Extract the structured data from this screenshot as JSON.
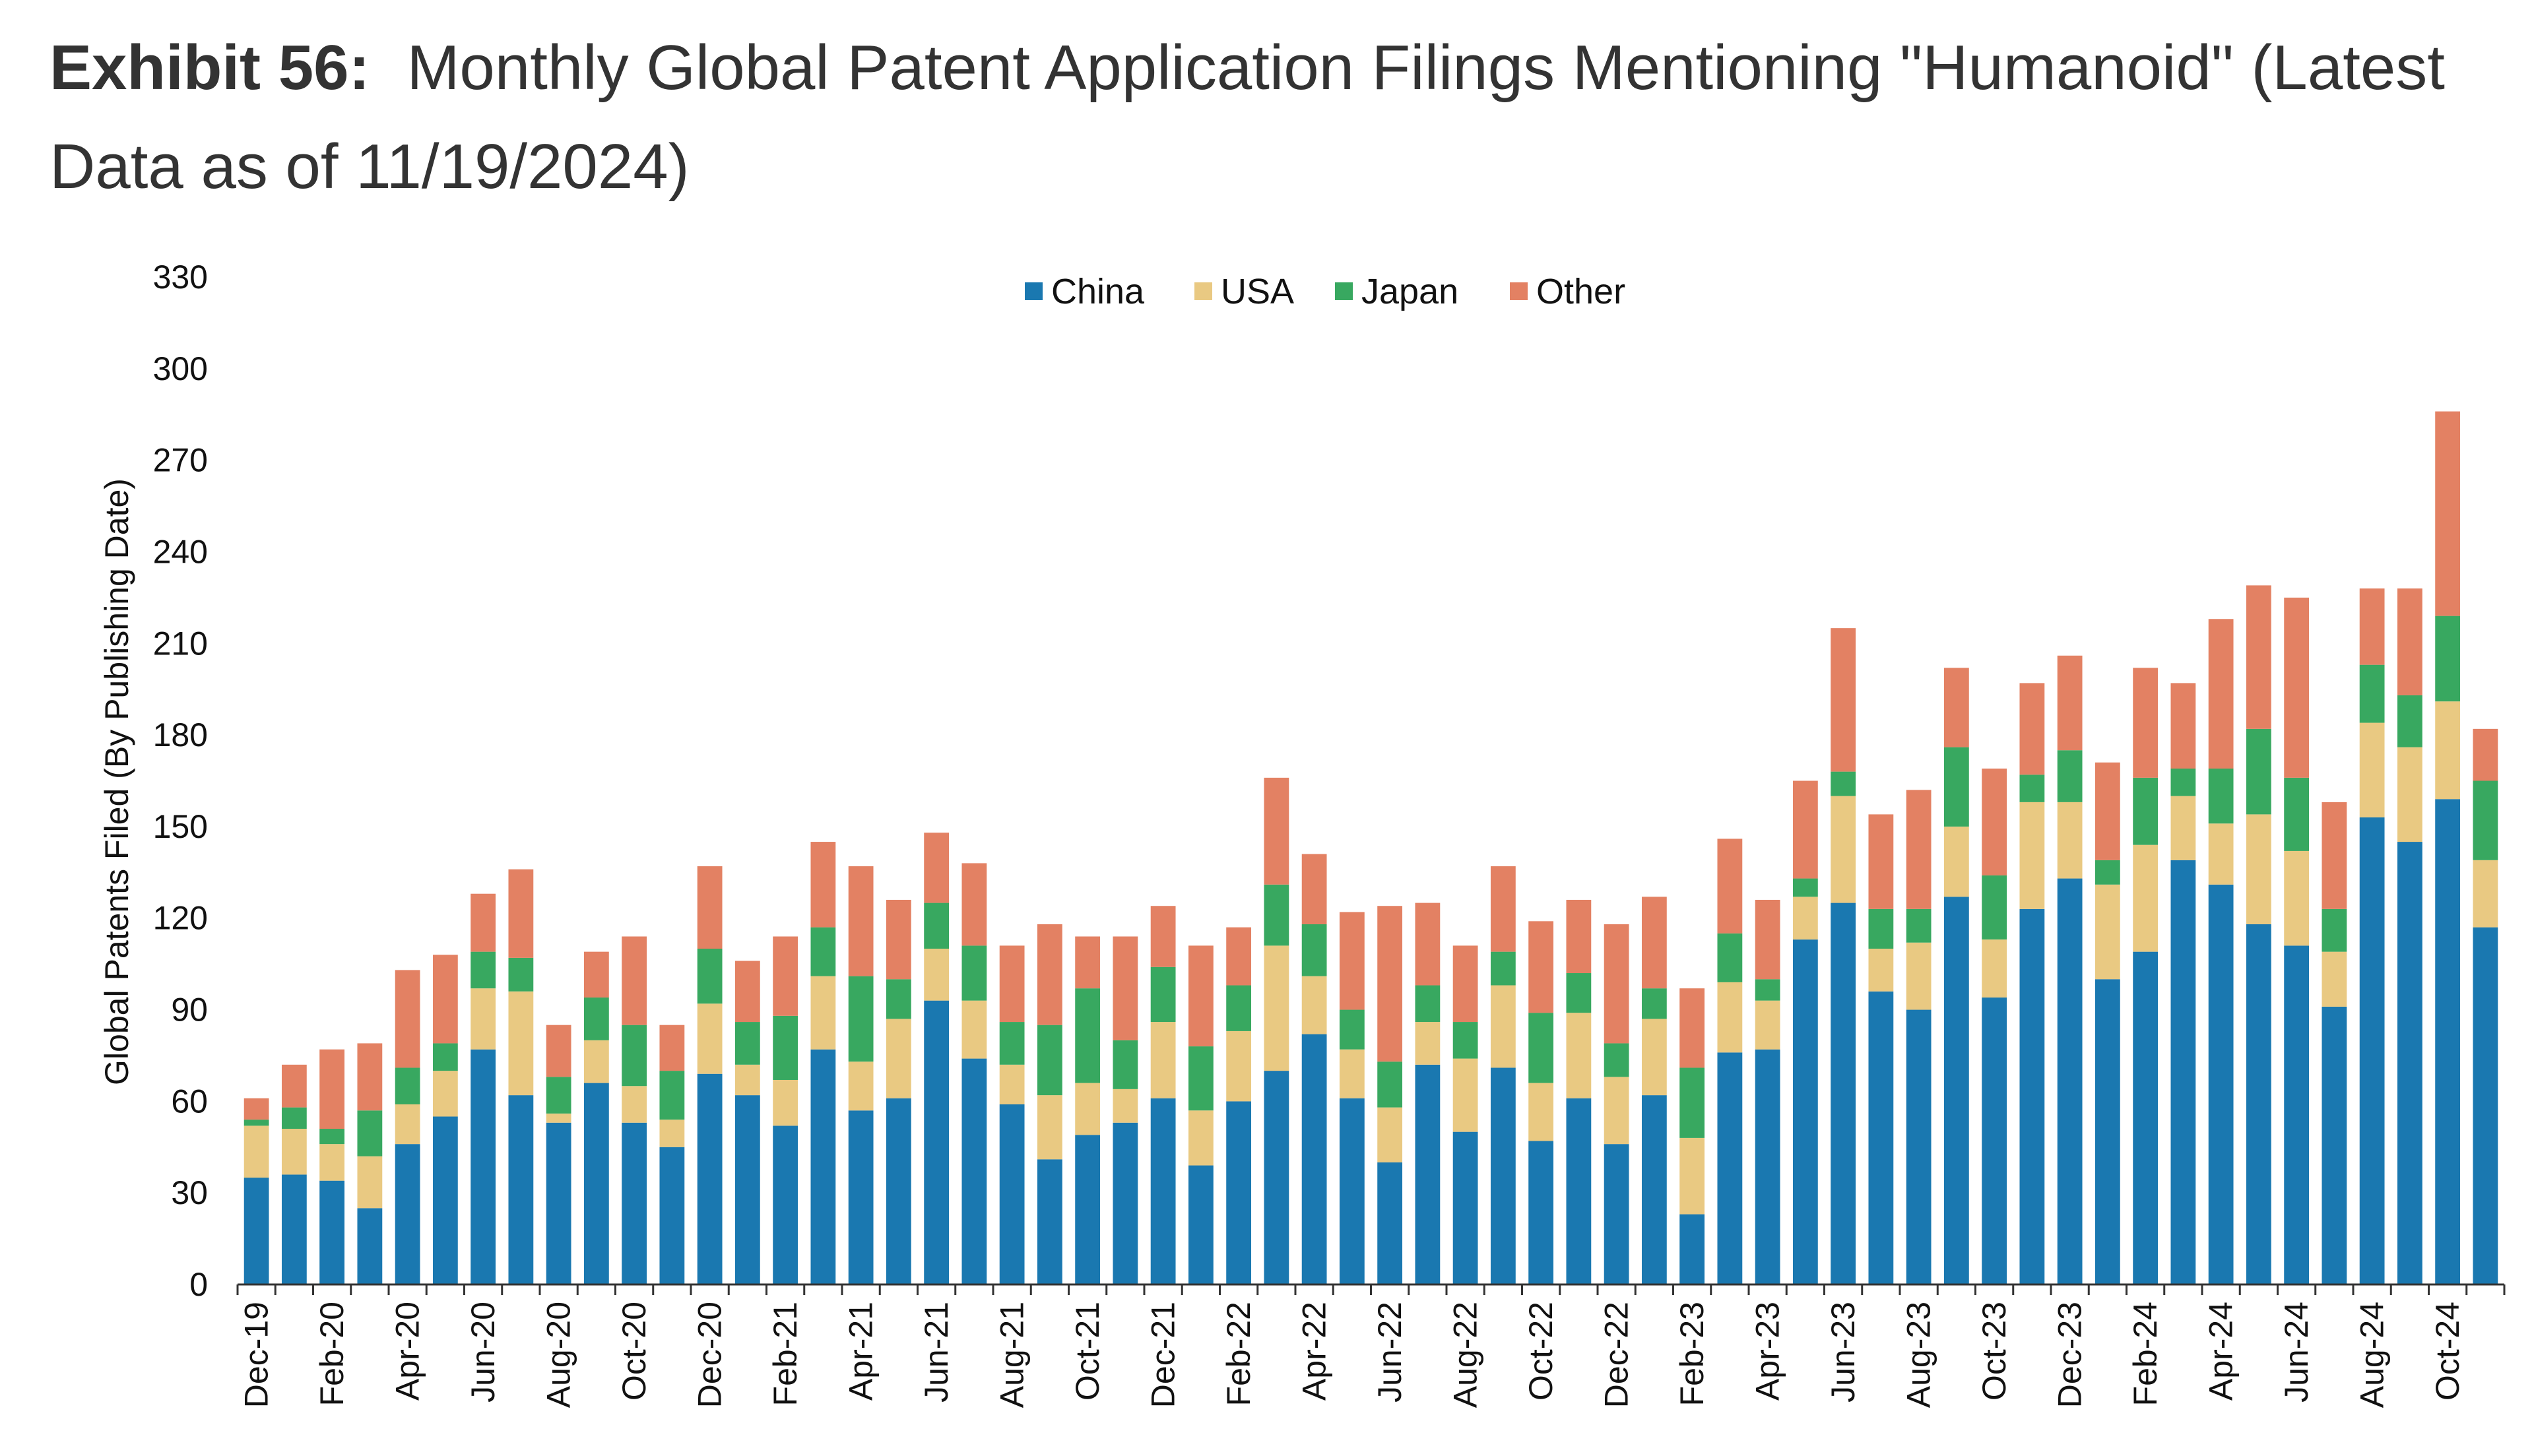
{
  "header": {
    "exhibit": "Exhibit 56:",
    "title": "Monthly Global Patent Application Filings Mentioning \"Humanoid\" (Latest Data as of 11/19/2024)"
  },
  "chart_data": {
    "type": "bar",
    "stacked": true,
    "ylabel": "Global Patents Filed (By Publishing Date)",
    "xlabel": "",
    "ylim": [
      0,
      330
    ],
    "yticks": [
      0,
      30,
      60,
      90,
      120,
      150,
      180,
      210,
      240,
      270,
      300,
      330
    ],
    "grid": false,
    "legend_position": "top-center",
    "categories": [
      "Dec-19",
      "Jan-20",
      "Feb-20",
      "Mar-20",
      "Apr-20",
      "May-20",
      "Jun-20",
      "Jul-20",
      "Aug-20",
      "Sep-20",
      "Oct-20",
      "Nov-20",
      "Dec-20",
      "Jan-21",
      "Feb-21",
      "Mar-21",
      "Apr-21",
      "May-21",
      "Jun-21",
      "Jul-21",
      "Aug-21",
      "Sep-21",
      "Oct-21",
      "Nov-21",
      "Dec-21",
      "Jan-22",
      "Feb-22",
      "Mar-22",
      "Apr-22",
      "May-22",
      "Jun-22",
      "Jul-22",
      "Aug-22",
      "Sep-22",
      "Oct-22",
      "Nov-22",
      "Dec-22",
      "Jan-23",
      "Feb-23",
      "Mar-23",
      "Apr-23",
      "May-23",
      "Jun-23",
      "Jul-23",
      "Aug-23",
      "Sep-23",
      "Oct-23",
      "Nov-23",
      "Dec-23",
      "Jan-24",
      "Feb-24",
      "Mar-24",
      "Apr-24",
      "May-24",
      "Jun-24",
      "Jul-24",
      "Aug-24",
      "Sep-24",
      "Oct-24",
      "Nov-24"
    ],
    "tick_labels": [
      "Dec-19",
      "",
      "Feb-20",
      "",
      "Apr-20",
      "",
      "Jun-20",
      "",
      "Aug-20",
      "",
      "Oct-20",
      "",
      "Dec-20",
      "",
      "Feb-21",
      "",
      "Apr-21",
      "",
      "Jun-21",
      "",
      "Aug-21",
      "",
      "Oct-21",
      "",
      "Dec-21",
      "",
      "Feb-22",
      "",
      "Apr-22",
      "",
      "Jun-22",
      "",
      "Aug-22",
      "",
      "Oct-22",
      "",
      "Dec-22",
      "",
      "Feb-23",
      "",
      "Apr-23",
      "",
      "Jun-23",
      "",
      "Aug-23",
      "",
      "Oct-23",
      "",
      "Dec-23",
      "",
      "Feb-24",
      "",
      "Apr-24",
      "",
      "Jun-24",
      "",
      "Aug-24",
      "",
      "Oct-24",
      ""
    ],
    "series": [
      {
        "name": "China",
        "color": "#1a78b0",
        "values": [
          35,
          36,
          34,
          25,
          46,
          55,
          77,
          62,
          53,
          66,
          53,
          45,
          69,
          62,
          52,
          77,
          57,
          61,
          93,
          74,
          59,
          41,
          49,
          53,
          61,
          39,
          60,
          70,
          82,
          61,
          40,
          72,
          50,
          71,
          47,
          61,
          46,
          62,
          23,
          76,
          77,
          113,
          125,
          96,
          90,
          127,
          94,
          123,
          133,
          100,
          109,
          139,
          131,
          118,
          111,
          91,
          153,
          145,
          159,
          117
        ]
      },
      {
        "name": "USA",
        "color": "#e9c982",
        "values": [
          17,
          15,
          12,
          17,
          13,
          15,
          20,
          34,
          3,
          14,
          12,
          9,
          23,
          10,
          15,
          24,
          16,
          26,
          17,
          19,
          13,
          21,
          17,
          11,
          25,
          18,
          23,
          41,
          19,
          16,
          18,
          14,
          24,
          27,
          19,
          28,
          22,
          25,
          25,
          23,
          16,
          14,
          35,
          14,
          22,
          23,
          19,
          35,
          25,
          31,
          35,
          21,
          20,
          36,
          31,
          18,
          31,
          31,
          32,
          22
        ]
      },
      {
        "name": "Japan",
        "color": "#38a860",
        "values": [
          2,
          7,
          5,
          15,
          12,
          9,
          12,
          11,
          12,
          14,
          20,
          16,
          18,
          14,
          21,
          16,
          28,
          13,
          15,
          18,
          14,
          23,
          31,
          16,
          18,
          21,
          15,
          20,
          17,
          13,
          15,
          12,
          12,
          11,
          23,
          13,
          11,
          10,
          23,
          16,
          7,
          6,
          8,
          13,
          11,
          26,
          21,
          9,
          17,
          8,
          22,
          9,
          18,
          28,
          24,
          14,
          19,
          17,
          28,
          26
        ]
      },
      {
        "name": "Other",
        "color": "#e38163",
        "values": [
          7,
          14,
          26,
          22,
          32,
          29,
          19,
          29,
          17,
          15,
          29,
          15,
          27,
          20,
          26,
          28,
          36,
          26,
          23,
          27,
          25,
          33,
          17,
          34,
          20,
          33,
          19,
          35,
          23,
          32,
          51,
          27,
          25,
          28,
          30,
          24,
          39,
          30,
          26,
          31,
          26,
          32,
          47,
          31,
          39,
          26,
          35,
          30,
          31,
          32,
          36,
          28,
          49,
          47,
          59,
          35,
          25,
          35,
          67,
          17
        ]
      }
    ]
  }
}
